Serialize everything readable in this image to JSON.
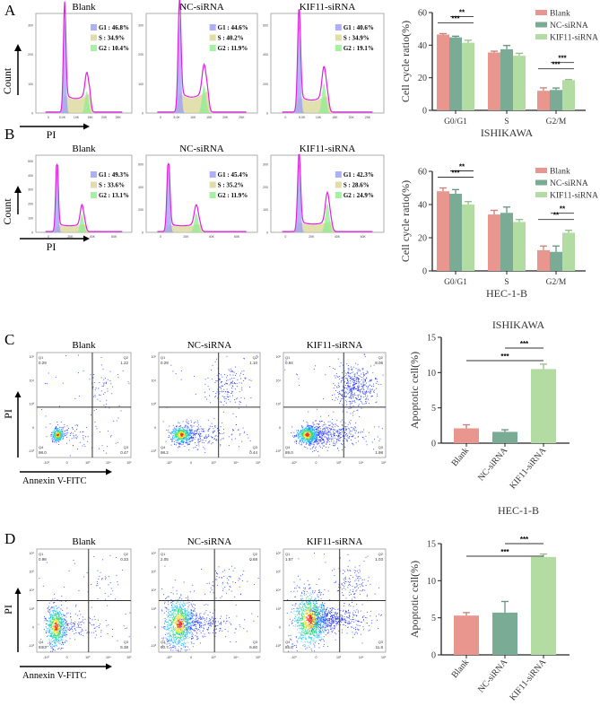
{
  "panel_labels": [
    "A",
    "B",
    "C",
    "D"
  ],
  "groups": [
    "Blank",
    "NC-siRNA",
    "KIF11-siRNA"
  ],
  "colors": {
    "Blank": "#e8968e",
    "NC-siRNA": "#7aab95",
    "KIF11-siRNA": "#b3dca2",
    "G1": "#9a9cf5",
    "S": "#d9d596",
    "G2": "#8fec8f",
    "fit": "#e020e0",
    "flow_low": "#2a3cff"
  },
  "cell_cycle_histograms": [
    {
      "panel": "A",
      "y_axis_label": "Count",
      "x_axis_label": "PI",
      "x_ticks": [
        "0",
        "5.0K",
        "10K",
        "15K",
        "20K",
        "25K"
      ],
      "plots": [
        {
          "title": "Blank",
          "y_ticks": [
            "0",
            "100",
            "200",
            "300"
          ],
          "legend": [
            "G1 : 46.8%",
            "S : 34.9%",
            "G2 : 10.4%"
          ]
        },
        {
          "title": "NC-siRNA",
          "y_ticks": [
            "0",
            "100",
            "200",
            "300"
          ],
          "legend": [
            "G1 : 44.6%",
            "S : 40.2%",
            "G2 : 11.9%"
          ]
        },
        {
          "title": "KIF11-siRNA",
          "y_ticks": [
            "0",
            "200",
            "400",
            "600"
          ],
          "legend": [
            "G1 : 40.6%",
            "S : 34.9%",
            "G2 : 19.1%"
          ]
        }
      ]
    },
    {
      "panel": "B",
      "y_axis_label": "Count",
      "x_axis_label": "PI",
      "x_ticks": [
        "0",
        "20K",
        "40K",
        "60K"
      ],
      "plots": [
        {
          "title": "Blank",
          "y_ticks": [
            "0",
            "100",
            "200",
            "300",
            "400",
            "500"
          ],
          "legend": [
            "G1 : 49.3%",
            "S : 33.6%",
            "G2 : 13.1%"
          ]
        },
        {
          "title": "NC-siRNA",
          "y_ticks": [
            "0",
            "200",
            "400",
            "600"
          ],
          "legend": [
            "G1 : 45.4%",
            "S : 35.2%",
            "G2 : 11.9%"
          ]
        },
        {
          "title": "KIF11-siRNA",
          "y_ticks": [
            "0",
            "100",
            "200",
            "300"
          ],
          "legend": [
            "G1 : 42.3%",
            "S : 28.6%",
            "G2 : 24.9%"
          ]
        }
      ]
    }
  ],
  "flow_plots": [
    {
      "panel": "C",
      "y_axis_label": "PI",
      "x_axis_label": "Annexin V-FITC",
      "y_ticks": [
        "10⁵",
        "10⁴",
        "10³",
        "0",
        "-10³"
      ],
      "x_ticks": [
        "-10³",
        "0",
        "10³",
        "10⁴",
        "10⁵"
      ],
      "plots": [
        {
          "title": "Blank",
          "Q1": "0.29",
          "Q2": "1.22",
          "Q3": "0.47",
          "Q4": "98.0"
        },
        {
          "title": "NC-siRNA",
          "Q1": "0.29",
          "Q2": "1.10",
          "Q3": "0.44",
          "Q4": "98.2"
        },
        {
          "title": "KIF11-siRNA",
          "Q1": "0.94",
          "Q2": "8.06",
          "Q3": "1.98",
          "Q4": "89.0"
        }
      ]
    },
    {
      "panel": "D",
      "y_axis_label": "PI",
      "x_axis_label": "Annexin V-FITC",
      "y_ticks": [
        "10⁶",
        "10⁵",
        "10⁴",
        "10³",
        "0",
        "-10³"
      ],
      "x_ticks": [
        "-10³",
        "0",
        "10³",
        "10⁴",
        "10⁵"
      ],
      "plots": [
        {
          "title": "Blank",
          "Q1": "0.98",
          "Q2": "0.33",
          "Q3": "5.38",
          "Q4": "93.3"
        },
        {
          "title": "NC-siRNA",
          "Q1": "2.05",
          "Q2": "0.68",
          "Q3": "6.60",
          "Q4": "90.7"
        },
        {
          "title": "KIF11-siRNA",
          "Q1": "1.57",
          "Q2": "1.03",
          "Q3": "11.8",
          "Q4": "85.6"
        }
      ]
    }
  ],
  "quadrant_names": [
    "Q1",
    "Q2",
    "Q3",
    "Q4"
  ],
  "chart_data": [
    {
      "type": "bar",
      "panel": "A",
      "title": "",
      "xlabel": "ISHIKAWA",
      "ylabel": "Cell cycle ratio(%)",
      "categories": [
        "G0/G1",
        "S",
        "G2/M"
      ],
      "ylim": [
        0,
        60
      ],
      "yticks": [
        0,
        20,
        40,
        60
      ],
      "legend": "top-right",
      "series": [
        {
          "name": "Blank",
          "values": [
            46.5,
            35.5,
            12.0
          ],
          "errors": [
            0.6,
            0.8,
            1.8
          ]
        },
        {
          "name": "NC-siRNA",
          "values": [
            44.8,
            37.5,
            12.5
          ],
          "errors": [
            0.7,
            2.3,
            1.2
          ]
        },
        {
          "name": "KIF11-siRNA",
          "values": [
            41.5,
            33.5,
            18.5
          ],
          "errors": [
            1.5,
            1.5,
            0.4
          ]
        }
      ],
      "significance": [
        {
          "category": "G0/G1",
          "from": "NC-siRNA",
          "to": "KIF11-siRNA",
          "label": "**"
        },
        {
          "category": "G0/G1",
          "from": "Blank",
          "to": "KIF11-siRNA",
          "label": "***"
        },
        {
          "category": "G2/M",
          "from": "NC-siRNA",
          "to": "KIF11-siRNA",
          "label": "***"
        },
        {
          "category": "G2/M",
          "from": "Blank",
          "to": "KIF11-siRNA",
          "label": "***"
        }
      ]
    },
    {
      "type": "bar",
      "panel": "B",
      "title": "",
      "xlabel": "HEC-1-B",
      "ylabel": "Cell cycle ratio(%)",
      "categories": [
        "G0/G1",
        "S",
        "G2/M"
      ],
      "ylim": [
        0,
        60
      ],
      "yticks": [
        0,
        20,
        40,
        60
      ],
      "legend": "top-right",
      "series": [
        {
          "name": "Blank",
          "values": [
            48.0,
            34.0,
            12.5
          ],
          "errors": [
            2.0,
            2.5,
            2.5
          ]
        },
        {
          "name": "NC-siRNA",
          "values": [
            46.5,
            35.0,
            11.5
          ],
          "errors": [
            2.5,
            3.5,
            3.5
          ]
        },
        {
          "name": "KIF11-siRNA",
          "values": [
            40.0,
            29.5,
            23.0
          ],
          "errors": [
            1.8,
            1.5,
            1.5
          ]
        }
      ],
      "significance": [
        {
          "category": "G0/G1",
          "from": "NC-siRNA",
          "to": "KIF11-siRNA",
          "label": "**"
        },
        {
          "category": "G0/G1",
          "from": "Blank",
          "to": "KIF11-siRNA",
          "label": "***"
        },
        {
          "category": "G2/M",
          "from": "NC-siRNA",
          "to": "KIF11-siRNA",
          "label": "**"
        },
        {
          "category": "G2/M",
          "from": "Blank",
          "to": "KIF11-siRNA",
          "label": "**"
        }
      ]
    },
    {
      "type": "bar",
      "panel": "C",
      "title": "ISHIKAWA",
      "xlabel": "",
      "ylabel": "Apoptotic cell(%)",
      "categories": [
        "Blank",
        "NC-siRNA",
        "KIF11-siRNA"
      ],
      "ylim": [
        0,
        15
      ],
      "yticks": [
        0,
        5,
        10,
        15
      ],
      "values": [
        2.1,
        1.6,
        10.5
      ],
      "errors": [
        0.5,
        0.3,
        0.7
      ],
      "significance": [
        {
          "from": "NC-siRNA",
          "to": "KIF11-siRNA",
          "label": "***"
        },
        {
          "from": "Blank",
          "to": "KIF11-siRNA",
          "label": "***"
        }
      ]
    },
    {
      "type": "bar",
      "panel": "D",
      "title": "HEC-1-B",
      "xlabel": "",
      "ylabel": "Apoptotic cell(%)",
      "categories": [
        "Blank",
        "NC-siRNA",
        "KIF11-siRNA"
      ],
      "ylim": [
        0,
        15
      ],
      "yticks": [
        0,
        5,
        10,
        15
      ],
      "values": [
        5.3,
        5.7,
        13.2
      ],
      "errors": [
        0.4,
        1.5,
        0.4
      ],
      "significance": [
        {
          "from": "NC-siRNA",
          "to": "KIF11-siRNA",
          "label": "***"
        },
        {
          "from": "Blank",
          "to": "KIF11-siRNA",
          "label": "***"
        }
      ]
    }
  ]
}
